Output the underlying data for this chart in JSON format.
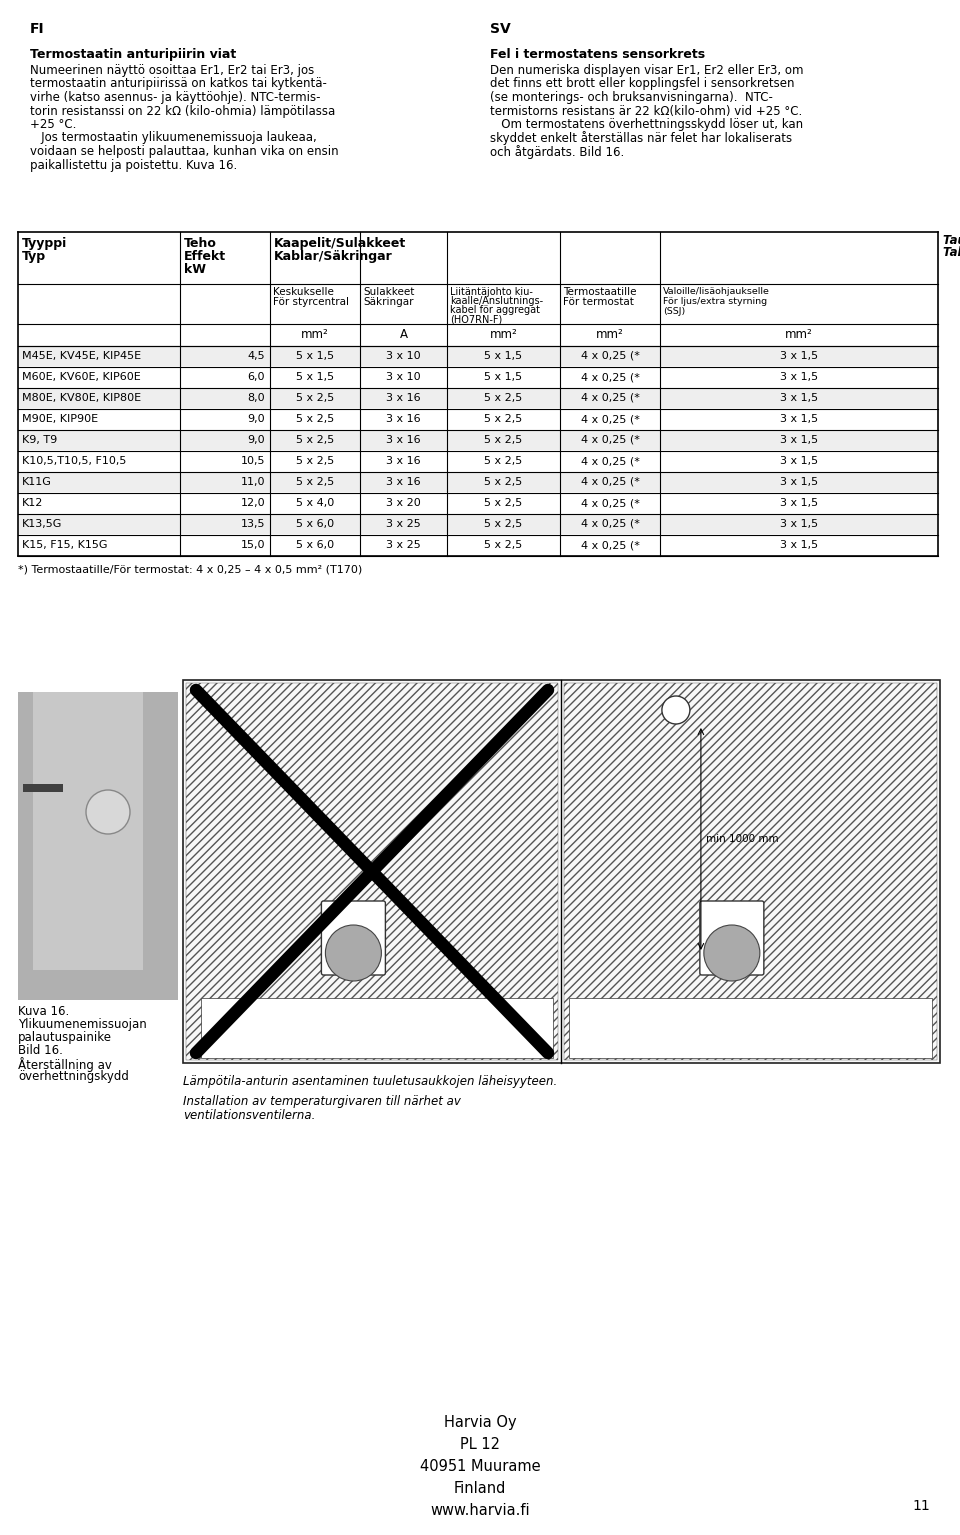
{
  "page_num": "11",
  "bg_color": "#ffffff",
  "fi_header": "FI",
  "sv_header": "SV",
  "fi_title": "Termostaatin anturipiirin viat",
  "sv_title": "Fel i termostatens sensorkrets",
  "fi_body_lines": [
    "Numeerinen näyttö osoittaa Er1, Er2 tai Er3, jos",
    "termostaatin anturipiirissä on katkos tai kytkentä-",
    "virhe (katso asennus- ja käyttöohje). NTC-termis-",
    "torin resistanssi on 22 kΩ (kilo-ohmia) lämpötilassa",
    "+25 °C.",
    "   Jos termostaatin ylikuumenemissuoja laukeaa,",
    "voidaan se helposti palauttaa, kunhan vika on ensin",
    "paikallistettu ja poistettu. Kuva 16."
  ],
  "sv_body_lines": [
    "Den numeriska displayen visar Er1, Er2 eller Er3, om",
    "det finns ett brott eller kopplingsfel i sensorkretsen",
    "(se monterings- och bruksanvisningarna).  NTC-",
    "termistorns resistans är 22 kΩ(kilo-ohm) vid +25 °C.",
    "   Om termostatens överhettningsskydd löser ut, kan",
    "skyddet enkelt återställas när felet har lokaliserats",
    "och åtgärdats. Bild 16."
  ],
  "table_rows": [
    [
      "M45E, KV45E, KIP45E",
      "4,5",
      "5 x 1,5",
      "3 x 10",
      "5 x 1,5",
      "4 x 0,25 (*",
      "3 x 1,5"
    ],
    [
      "M60E, KV60E, KIP60E",
      "6,0",
      "5 x 1,5",
      "3 x 10",
      "5 x 1,5",
      "4 x 0,25 (*",
      "3 x 1,5"
    ],
    [
      "M80E, KV80E, KIP80E",
      "8,0",
      "5 x 2,5",
      "3 x 16",
      "5 x 2,5",
      "4 x 0,25 (*",
      "3 x 1,5"
    ],
    [
      "M90E, KIP90E",
      "9,0",
      "5 x 2,5",
      "3 x 16",
      "5 x 2,5",
      "4 x 0,25 (*",
      "3 x 1,5"
    ],
    [
      "K9, T9",
      "9,0",
      "5 x 2,5",
      "3 x 16",
      "5 x 2,5",
      "4 x 0,25 (*",
      "3 x 1,5"
    ],
    [
      "K10,5,T10,5, F10,5",
      "10,5",
      "5 x 2,5",
      "3 x 16",
      "5 x 2,5",
      "4 x 0,25 (*",
      "3 x 1,5"
    ],
    [
      "K11G",
      "11,0",
      "5 x 2,5",
      "3 x 16",
      "5 x 2,5",
      "4 x 0,25 (*",
      "3 x 1,5"
    ],
    [
      "K12",
      "12,0",
      "5 x 4,0",
      "3 x 20",
      "5 x 2,5",
      "4 x 0,25 (*",
      "3 x 1,5"
    ],
    [
      "K13,5G",
      "13,5",
      "5 x 6,0",
      "3 x 25",
      "5 x 2,5",
      "4 x 0,25 (*",
      "3 x 1,5"
    ],
    [
      "K15, F15, K15G",
      "15,0",
      "5 x 6,0",
      "3 x 25",
      "5 x 2,5",
      "4 x 0,25 (*",
      "3 x 1,5"
    ]
  ],
  "table_footnote": "*) Termostaatille/För termostat: 4 x 0,25 – 4 x 0,5 mm² (T170)",
  "caption_kuva_lines": [
    "Kuva 16.",
    "Ylikuumenemissuojan",
    "palautuspainike",
    "Bild 16.",
    "Återställning av",
    "överhettningskydd"
  ],
  "caption_lamp_fi": "Lämpötila-anturin asentaminen tuuletusaukkojen läheisyyteen.",
  "caption_lamp_sv_lines": [
    "Installation av temperaturgivaren till närhet av",
    "ventilationsventilerna."
  ],
  "footer_lines": [
    "Harvia Oy",
    "PL 12",
    "40951 Muurame",
    "Finland",
    "www.harvia.fi"
  ]
}
